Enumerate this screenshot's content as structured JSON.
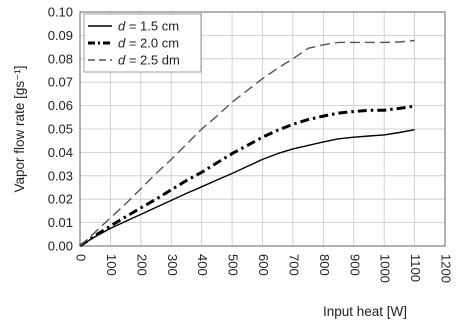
{
  "chart_data": {
    "type": "line",
    "title": "",
    "xlabel": "Input heat [W]",
    "ylabel": "Vapor flow rate [gs⁻¹]",
    "xlim": [
      0,
      1200
    ],
    "ylim": [
      0,
      0.1
    ],
    "xticks": [
      "0",
      "100",
      "200",
      "300",
      "400",
      "500",
      "600",
      "700",
      "800",
      "900",
      "1000",
      "1100",
      "1200"
    ],
    "yticks": [
      "0.00",
      "0.01",
      "0.02",
      "0.03",
      "0.04",
      "0.05",
      "0.06",
      "0.07",
      "0.08",
      "0.09",
      "0.10"
    ],
    "grid": true,
    "legend_position": "top-left",
    "series": [
      {
        "name": "d = 1.5 cm",
        "label_var": "d",
        "label_rest": " = 1.5 cm",
        "style": "solid",
        "color": "#000000",
        "x": [
          0,
          50,
          100,
          150,
          200,
          250,
          300,
          350,
          400,
          450,
          500,
          550,
          600,
          650,
          700,
          750,
          800,
          850,
          900,
          950,
          1000,
          1050,
          1100
        ],
        "y": [
          0.0,
          0.004,
          0.0075,
          0.0105,
          0.0135,
          0.0165,
          0.0195,
          0.0225,
          0.0253,
          0.0282,
          0.031,
          0.034,
          0.037,
          0.0395,
          0.0415,
          0.043,
          0.0445,
          0.0458,
          0.0465,
          0.047,
          0.0475,
          0.0485,
          0.0497
        ]
      },
      {
        "name": "d = 2.0 cm",
        "label_var": "d",
        "label_rest": " = 2.0 cm",
        "style": "dashdot",
        "color": "#000000",
        "x": [
          0,
          50,
          100,
          150,
          200,
          250,
          300,
          350,
          400,
          450,
          500,
          550,
          600,
          650,
          700,
          750,
          800,
          850,
          900,
          950,
          1000,
          1050,
          1100
        ],
        "y": [
          0.0,
          0.0045,
          0.0085,
          0.0125,
          0.0163,
          0.02,
          0.024,
          0.028,
          0.0315,
          0.0355,
          0.0395,
          0.043,
          0.0465,
          0.0495,
          0.052,
          0.054,
          0.0555,
          0.0568,
          0.0575,
          0.058,
          0.058,
          0.0588,
          0.0598
        ]
      },
      {
        "name": "d = 2.5 dm",
        "label_var": "d",
        "label_rest": " = 2.5 dm",
        "style": "dashed",
        "color": "#555555",
        "x": [
          0,
          50,
          100,
          150,
          200,
          250,
          300,
          350,
          400,
          450,
          500,
          550,
          600,
          650,
          700,
          750,
          800,
          850,
          900,
          950,
          1000,
          1050,
          1100
        ],
        "y": [
          0.0,
          0.006,
          0.012,
          0.018,
          0.0245,
          0.031,
          0.037,
          0.0435,
          0.05,
          0.0555,
          0.0615,
          0.0665,
          0.0715,
          0.076,
          0.08,
          0.0845,
          0.086,
          0.087,
          0.087,
          0.087,
          0.087,
          0.0872,
          0.0878
        ]
      }
    ]
  }
}
